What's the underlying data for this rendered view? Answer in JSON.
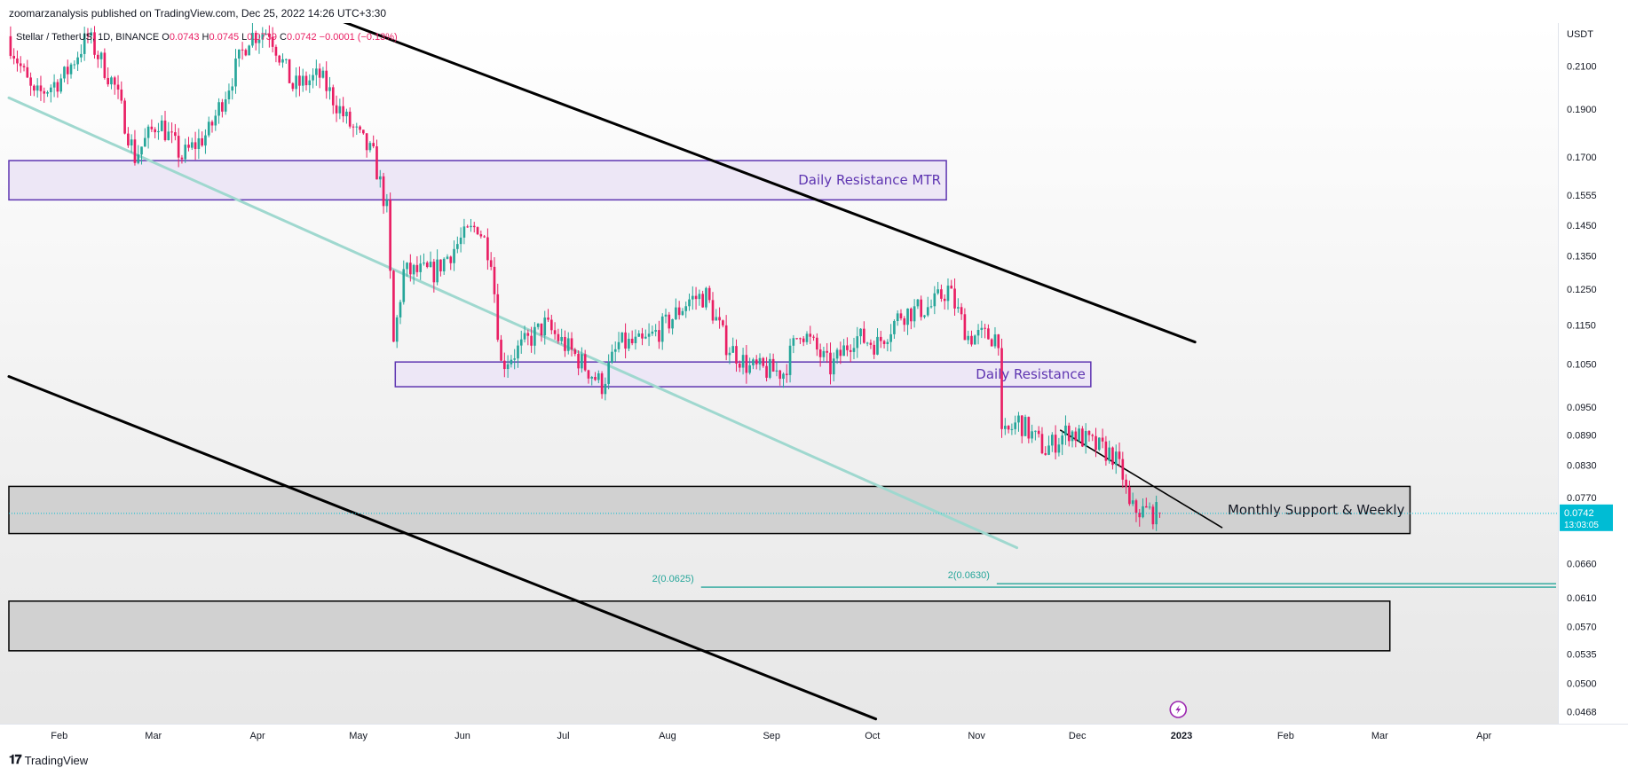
{
  "header": {
    "publisher_line": "zoomarzanalysis published on TradingView.com, Dec 25, 2022 14:26 UTC+3:30"
  },
  "footer": {
    "brand": "TradingView",
    "logo_icon": "tradingview-logo-icon"
  },
  "colors": {
    "up": "#26a69a",
    "down": "#e91e63",
    "purple_box_fill": "#ede7f6",
    "purple_box_stroke": "#5e35b1",
    "grey_box_fill": "#d1d1d1",
    "trend": "#000000",
    "teal_line": "#9fd8cf",
    "price_tag": "#00bcd4",
    "fib": "#26a69a"
  },
  "chart_data": {
    "type": "candlestick",
    "symbol_line": {
      "name": "Stellar / TetherUS, 1D, BINANCE",
      "open_label": "O",
      "open": "0.0743",
      "high_label": "H",
      "high": "0.0745",
      "low_label": "L",
      "low": "0.0739",
      "close_label": "C",
      "close": "0.0742",
      "change": "−0.0001 (−0.13%)"
    },
    "currency": "USDT",
    "y_scale": "log",
    "ylim": [
      0.0455,
      0.232
    ],
    "y_ticks": [
      "0.2100",
      "0.1900",
      "0.1700",
      "0.1555",
      "0.1450",
      "0.1350",
      "0.1250",
      "0.1150",
      "0.1050",
      "0.0950",
      "0.0890",
      "0.0830",
      "0.0770",
      "0.0660",
      "0.0610",
      "0.0570",
      "0.0535",
      "0.0500",
      "0.0468"
    ],
    "x_start": "2022-01-17",
    "x_end": "2023-04-23",
    "x_ticks": [
      {
        "label": "Feb",
        "date": "2022-02-01"
      },
      {
        "label": "Mar",
        "date": "2022-03-01"
      },
      {
        "label": "Apr",
        "date": "2022-04-01"
      },
      {
        "label": "May",
        "date": "2022-05-01"
      },
      {
        "label": "Jun",
        "date": "2022-06-01"
      },
      {
        "label": "Jul",
        "date": "2022-07-01"
      },
      {
        "label": "Aug",
        "date": "2022-08-01"
      },
      {
        "label": "Sep",
        "date": "2022-09-01"
      },
      {
        "label": "Oct",
        "date": "2022-10-01"
      },
      {
        "label": "Nov",
        "date": "2022-11-01"
      },
      {
        "label": "Dec",
        "date": "2022-12-01"
      },
      {
        "label": "2023",
        "date": "2023-01-01"
      },
      {
        "label": "Feb",
        "date": "2023-02-01"
      },
      {
        "label": "Mar",
        "date": "2023-03-01"
      },
      {
        "label": "Apr",
        "date": "2023-04-01"
      }
    ],
    "last_price": "0.0742",
    "countdown": "13:03:05",
    "price_path": [
      [
        "2022-01-17",
        0.225
      ],
      [
        "2022-01-25",
        0.195
      ],
      [
        "2022-02-03",
        0.205
      ],
      [
        "2022-02-10",
        0.225
      ],
      [
        "2022-02-18",
        0.2
      ],
      [
        "2022-02-24",
        0.17
      ],
      [
        "2022-03-03",
        0.185
      ],
      [
        "2022-03-10",
        0.17
      ],
      [
        "2022-03-18",
        0.18
      ],
      [
        "2022-03-25",
        0.205
      ],
      [
        "2022-03-30",
        0.225
      ],
      [
        "2022-04-05",
        0.228
      ],
      [
        "2022-04-12",
        0.2
      ],
      [
        "2022-04-20",
        0.205
      ],
      [
        "2022-04-28",
        0.185
      ],
      [
        "2022-05-06",
        0.17
      ],
      [
        "2022-05-10",
        0.15
      ],
      [
        "2022-05-12",
        0.11
      ],
      [
        "2022-05-15",
        0.13
      ],
      [
        "2022-05-24",
        0.13
      ],
      [
        "2022-06-01",
        0.14
      ],
      [
        "2022-06-06",
        0.145
      ],
      [
        "2022-06-10",
        0.135
      ],
      [
        "2022-06-13",
        0.105
      ],
      [
        "2022-06-20",
        0.11
      ],
      [
        "2022-06-26",
        0.115
      ],
      [
        "2022-07-04",
        0.108
      ],
      [
        "2022-07-13",
        0.1
      ],
      [
        "2022-07-18",
        0.11
      ],
      [
        "2022-07-25",
        0.11
      ],
      [
        "2022-08-01",
        0.115
      ],
      [
        "2022-08-08",
        0.122
      ],
      [
        "2022-08-13",
        0.123
      ],
      [
        "2022-08-19",
        0.11
      ],
      [
        "2022-08-26",
        0.104
      ],
      [
        "2022-09-05",
        0.103
      ],
      [
        "2022-09-10",
        0.114
      ],
      [
        "2022-09-19",
        0.104
      ],
      [
        "2022-09-26",
        0.112
      ],
      [
        "2022-10-03",
        0.11
      ],
      [
        "2022-10-10",
        0.118
      ],
      [
        "2022-10-19",
        0.12
      ],
      [
        "2022-10-24",
        0.125
      ],
      [
        "2022-10-30",
        0.112
      ],
      [
        "2022-11-08",
        0.112
      ],
      [
        "2022-11-09",
        0.088
      ],
      [
        "2022-11-14",
        0.092
      ],
      [
        "2022-11-22",
        0.086
      ],
      [
        "2022-11-29",
        0.09
      ],
      [
        "2022-12-06",
        0.087
      ],
      [
        "2022-12-12",
        0.085
      ],
      [
        "2022-12-15",
        0.081
      ],
      [
        "2022-12-17",
        0.075
      ],
      [
        "2022-12-25",
        0.0742
      ]
    ],
    "zones": [
      {
        "label": "Daily Resistance MTR",
        "from": "2022-01-17",
        "to": "2022-10-23",
        "top": 0.1685,
        "bottom": 0.1538,
        "style": "purple"
      },
      {
        "label": "Daily Resistance",
        "from": "2022-05-12",
        "to": "2022-12-05",
        "top": 0.1055,
        "bottom": 0.0996,
        "style": "purple"
      },
      {
        "label": "Monthly Support & Weekly",
        "from": "2022-01-17",
        "to": "2023-03-10",
        "top": 0.079,
        "bottom": 0.0708,
        "style": "grey"
      },
      {
        "label": "",
        "from": "2022-01-17",
        "to": "2023-03-04",
        "top": 0.0605,
        "bottom": 0.0539,
        "style": "grey"
      }
    ],
    "trendlines": [
      {
        "from": [
          "2022-04-16",
          0.24
        ],
        "to": [
          "2023-01-05",
          0.1105
        ],
        "style": "black"
      },
      {
        "from": [
          "2022-01-17",
          0.102
        ],
        "to": [
          "2022-10-02",
          0.046
        ],
        "style": "black"
      },
      {
        "from": [
          "2022-01-17",
          0.195
        ],
        "to": [
          "2022-11-13",
          0.0685
        ],
        "style": "teal"
      },
      {
        "from": [
          "2022-11-26",
          0.09
        ],
        "to": [
          "2023-01-13",
          0.0718
        ],
        "style": "black-thin"
      }
    ],
    "fib_levels": [
      {
        "label": "2(0.0625)",
        "price": 0.0625,
        "from": "2022-08-11",
        "to": "2023-04-23"
      },
      {
        "label": "2(0.0630)",
        "price": 0.063,
        "from": "2022-11-07",
        "to": "2023-04-23"
      }
    ],
    "event_icon": "lightning-icon",
    "event_date": "2022-12-31"
  }
}
